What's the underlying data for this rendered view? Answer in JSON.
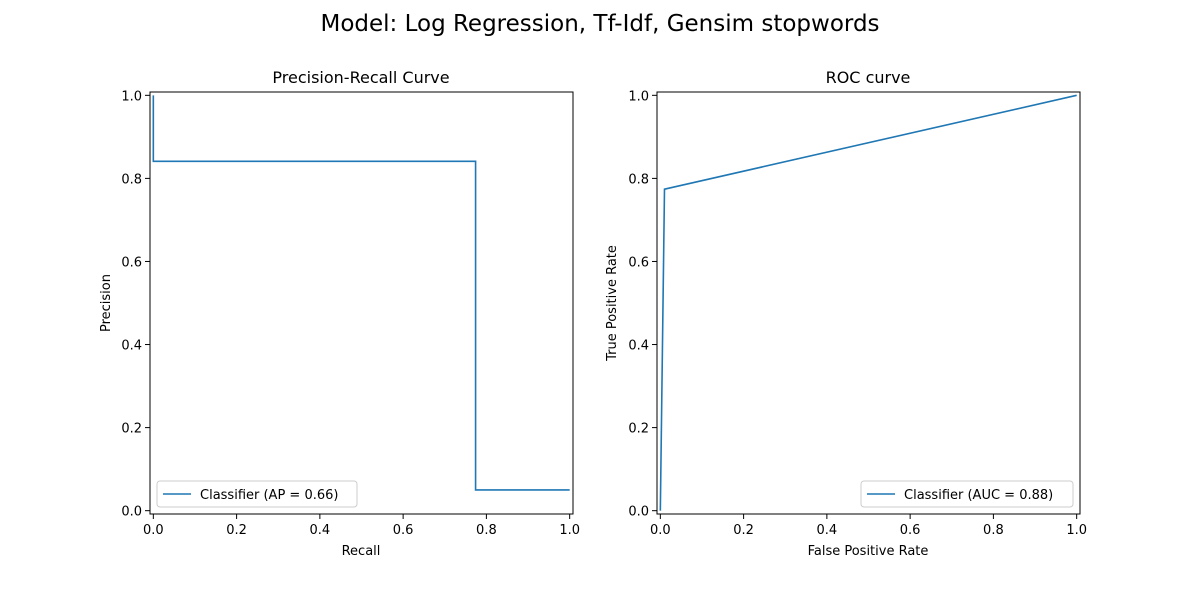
{
  "figure": {
    "suptitle": "Model: Log Regression, Tf-Idf, Gensim stopwords"
  },
  "colors": {
    "series": "#1f77b4",
    "axes": "#000000",
    "legend_border": "#cccccc",
    "background": "#ffffff"
  },
  "chart_data": [
    {
      "type": "line",
      "step": true,
      "title": "Precision-Recall Curve",
      "xlabel": "Recall",
      "ylabel": "Precision",
      "xlim": [
        0.0,
        1.0
      ],
      "ylim": [
        0.0,
        1.0
      ],
      "xticks": [
        "0.0",
        "0.2",
        "0.4",
        "0.6",
        "0.8",
        "1.0"
      ],
      "yticks": [
        "0.0",
        "0.2",
        "0.4",
        "0.6",
        "0.8",
        "1.0"
      ],
      "grid": false,
      "legend_position": "lower-left",
      "series": [
        {
          "name": "Classifier (AP = 0.66)",
          "x": [
            0.0,
            0.0,
            0.774,
            0.774,
            1.0
          ],
          "y": [
            1.0,
            0.841,
            0.841,
            0.05,
            0.05
          ]
        }
      ]
    },
    {
      "type": "line",
      "step": false,
      "title": "ROC curve",
      "xlabel": "False Positive Rate",
      "ylabel": "True Positive Rate",
      "xlim": [
        0.0,
        1.0
      ],
      "ylim": [
        0.0,
        1.0
      ],
      "xticks": [
        "0.0",
        "0.2",
        "0.4",
        "0.6",
        "0.8",
        "1.0"
      ],
      "yticks": [
        "0.0",
        "0.2",
        "0.4",
        "0.6",
        "0.8",
        "1.0"
      ],
      "grid": false,
      "legend_position": "lower-right",
      "series": [
        {
          "name": "Classifier (AUC = 0.88)",
          "x": [
            0.0,
            0.01,
            1.0
          ],
          "y": [
            0.0,
            0.774,
            1.0
          ]
        }
      ]
    }
  ]
}
